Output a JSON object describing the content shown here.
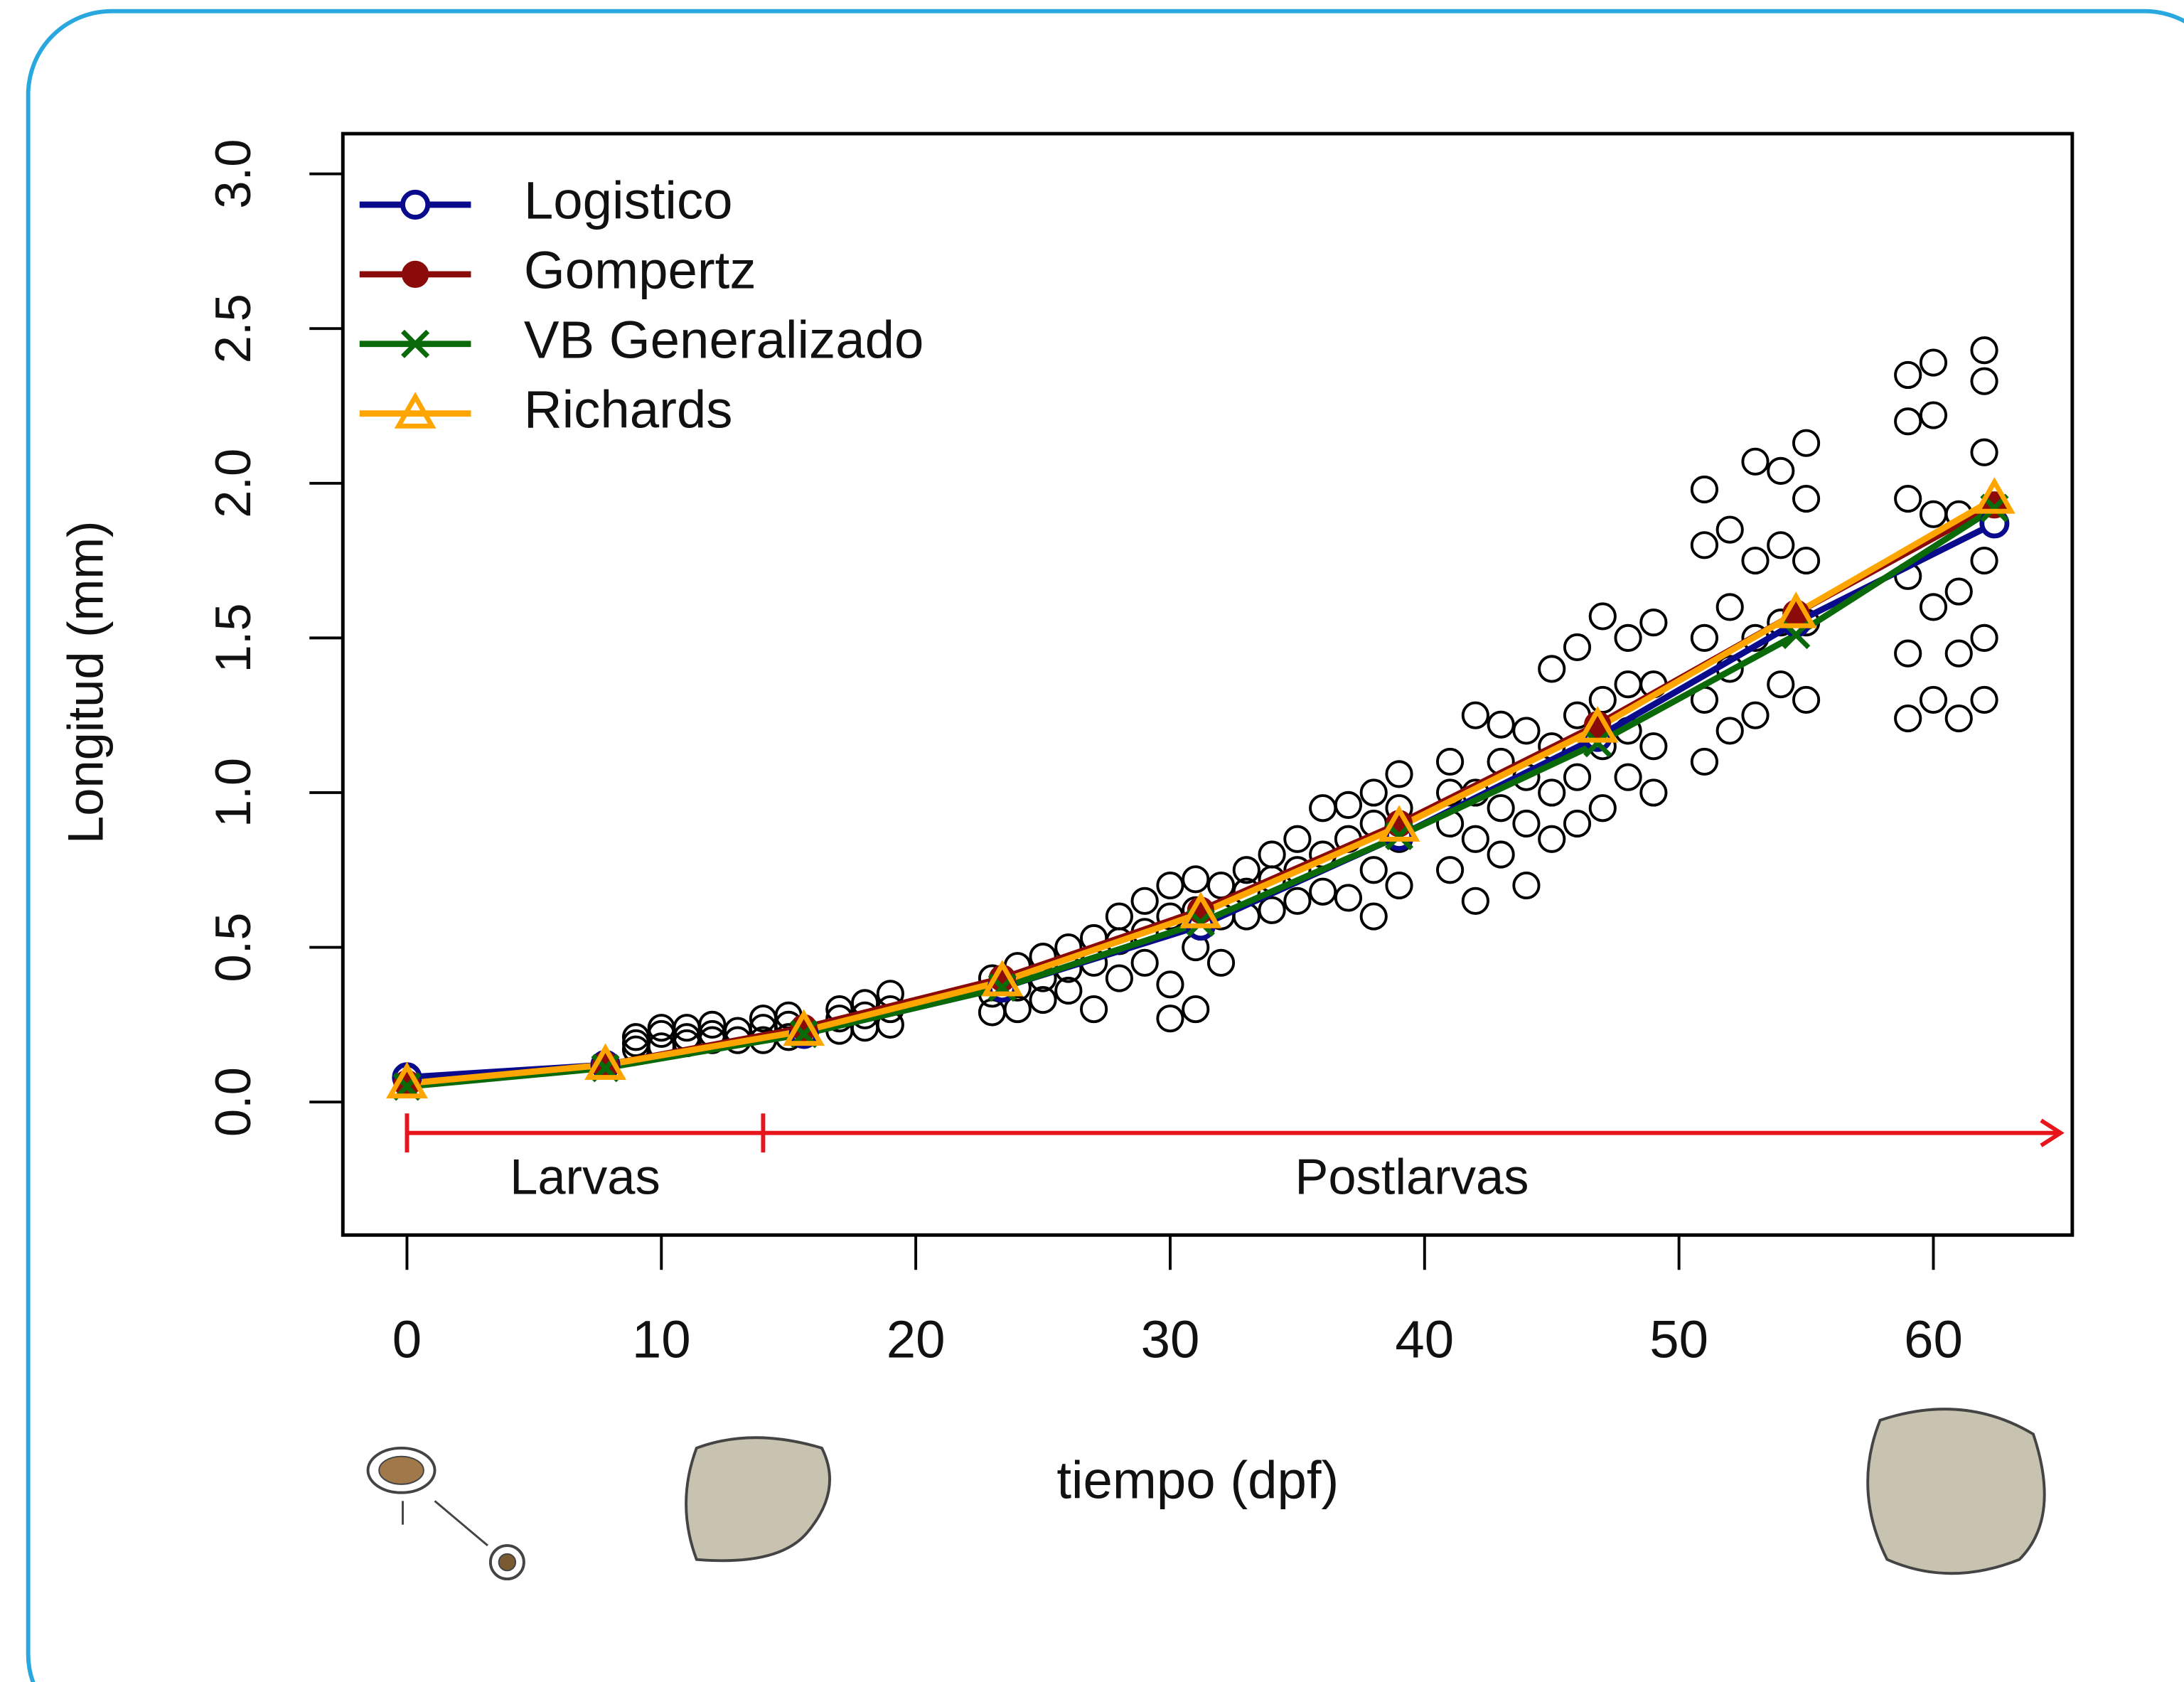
{
  "chart_data": {
    "type": "line",
    "xlabel": "tiempo (dpf)",
    "ylabel": "Longitud (mm)",
    "xlim": [
      -2.52,
      65.46
    ],
    "ylim": [
      -0.43,
      3.13
    ],
    "xticks": [
      0,
      10,
      20,
      30,
      40,
      50,
      60
    ],
    "yticks": [
      {
        "value": 0,
        "label": "0.0"
      },
      0.5,
      {
        "value": 1,
        "label": "1.0"
      },
      1.5,
      {
        "value": 2,
        "label": "2.0"
      },
      2.5,
      {
        "value": 3,
        "label": "3.0"
      }
    ],
    "legend": "top-left",
    "x": [
      0,
      7.8,
      15.6,
      23.4,
      31.2,
      39,
      46.8,
      54.6,
      62.4
    ],
    "series": [
      {
        "name": "Logistico",
        "color": "#0a0a8c",
        "marker": "open-circle",
        "values": [
          0.08,
          0.12,
          0.22,
          0.37,
          0.57,
          0.86,
          1.18,
          1.55,
          1.87
        ]
      },
      {
        "name": "Gompertz",
        "color": "#8b0a0a",
        "marker": "filled-circle",
        "values": [
          0.06,
          0.12,
          0.24,
          0.4,
          0.62,
          0.9,
          1.22,
          1.58,
          1.93
        ]
      },
      {
        "name": "VB Generalizado",
        "color": "#0a6a0a",
        "marker": "cross",
        "values": [
          0.05,
          0.11,
          0.22,
          0.37,
          0.58,
          0.86,
          1.16,
          1.51,
          1.92
        ]
      },
      {
        "name": "Richards",
        "color": "#ffa500",
        "marker": "open-triangle",
        "values": [
          0.06,
          0.12,
          0.23,
          0.39,
          0.61,
          0.89,
          1.21,
          1.58,
          1.95
        ]
      }
    ],
    "points": [
      {
        "x": 9,
        "y": [
          0.17,
          0.19,
          0.21
        ]
      },
      {
        "x": 10,
        "y": [
          0.18,
          0.22,
          0.24
        ]
      },
      {
        "x": 11,
        "y": [
          0.19,
          0.21,
          0.24
        ]
      },
      {
        "x": 12,
        "y": [
          0.2,
          0.22,
          0.25
        ]
      },
      {
        "x": 13,
        "y": [
          0.2,
          0.23
        ]
      },
      {
        "x": 14,
        "y": [
          0.2,
          0.24,
          0.27
        ]
      },
      {
        "x": 15,
        "y": [
          0.21,
          0.25,
          0.28
        ]
      },
      {
        "x": 17,
        "y": [
          0.23,
          0.27,
          0.3
        ]
      },
      {
        "x": 18,
        "y": [
          0.24,
          0.28,
          0.32
        ]
      },
      {
        "x": 19,
        "y": [
          0.25,
          0.3,
          0.35
        ]
      },
      {
        "x": 23,
        "y": [
          0.29,
          0.35,
          0.4
        ]
      },
      {
        "x": 24,
        "y": [
          0.3,
          0.37,
          0.44
        ]
      },
      {
        "x": 25,
        "y": [
          0.33,
          0.4,
          0.47
        ]
      },
      {
        "x": 26,
        "y": [
          0.36,
          0.43,
          0.5
        ]
      },
      {
        "x": 27,
        "y": [
          0.3,
          0.45,
          0.53
        ]
      },
      {
        "x": 28,
        "y": [
          0.4,
          0.52,
          0.6
        ]
      },
      {
        "x": 29,
        "y": [
          0.45,
          0.55,
          0.65
        ]
      },
      {
        "x": 30,
        "y": [
          0.27,
          0.38,
          0.6,
          0.7
        ]
      },
      {
        "x": 31,
        "y": [
          0.3,
          0.5,
          0.62,
          0.72
        ]
      },
      {
        "x": 32,
        "y": [
          0.45,
          0.6,
          0.7
        ]
      },
      {
        "x": 33,
        "y": [
          0.6,
          0.68,
          0.75
        ]
      },
      {
        "x": 34,
        "y": [
          0.62,
          0.72,
          0.8
        ]
      },
      {
        "x": 35,
        "y": [
          0.65,
          0.75,
          0.85
        ]
      },
      {
        "x": 36,
        "y": [
          0.68,
          0.8,
          0.95
        ]
      },
      {
        "x": 37,
        "y": [
          0.66,
          0.85,
          0.96
        ]
      },
      {
        "x": 38,
        "y": [
          0.6,
          0.75,
          0.9,
          1.0
        ]
      },
      {
        "x": 39,
        "y": [
          0.7,
          0.85,
          0.95,
          1.06
        ]
      },
      {
        "x": 41,
        "y": [
          0.75,
          0.9,
          1.0,
          1.1
        ]
      },
      {
        "x": 42,
        "y": [
          0.65,
          0.85,
          1.0,
          1.25
        ]
      },
      {
        "x": 43,
        "y": [
          0.8,
          0.95,
          1.1,
          1.22
        ]
      },
      {
        "x": 44,
        "y": [
          0.7,
          0.9,
          1.05,
          1.2
        ]
      },
      {
        "x": 45,
        "y": [
          0.85,
          1.0,
          1.15,
          1.4
        ]
      },
      {
        "x": 46,
        "y": [
          0.9,
          1.05,
          1.25,
          1.47
        ]
      },
      {
        "x": 47,
        "y": [
          0.95,
          1.15,
          1.3,
          1.57
        ]
      },
      {
        "x": 48,
        "y": [
          1.05,
          1.2,
          1.35,
          1.5
        ]
      },
      {
        "x": 49,
        "y": [
          1.0,
          1.15,
          1.35,
          1.55
        ]
      },
      {
        "x": 51,
        "y": [
          1.1,
          1.3,
          1.5,
          1.8,
          1.98
        ]
      },
      {
        "x": 52,
        "y": [
          1.2,
          1.4,
          1.6,
          1.85
        ]
      },
      {
        "x": 53,
        "y": [
          1.25,
          1.5,
          1.75,
          2.07
        ]
      },
      {
        "x": 54,
        "y": [
          1.35,
          1.55,
          1.8,
          2.04
        ]
      },
      {
        "x": 55,
        "y": [
          1.3,
          1.55,
          1.75,
          1.95,
          2.13
        ]
      },
      {
        "x": 59,
        "y": [
          1.24,
          1.45,
          1.7,
          1.95,
          2.2,
          2.35
        ]
      },
      {
        "x": 60,
        "y": [
          1.3,
          1.6,
          1.9,
          2.22,
          2.39
        ]
      },
      {
        "x": 61,
        "y": [
          1.24,
          1.45,
          1.65,
          1.9
        ]
      },
      {
        "x": 62,
        "y": [
          1.3,
          1.5,
          1.75,
          2.1,
          2.33,
          2.43
        ]
      }
    ],
    "phases": [
      {
        "label": "Larvas",
        "start": 0,
        "end": 14
      },
      {
        "label": "Postlarvas",
        "start": 14,
        "end": 65
      }
    ],
    "phase_color": "#e8141c"
  }
}
